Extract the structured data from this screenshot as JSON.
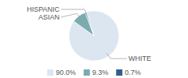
{
  "chart_data": {
    "type": "pie",
    "categories": [
      "WHITE",
      "ASIAN",
      "HISPANIC"
    ],
    "values": [
      90.0,
      9.3,
      0.7
    ],
    "value_labels": [
      "90.0%",
      "9.3%",
      "0.7%"
    ],
    "colors": [
      "#dce6f0",
      "#7aabb0",
      "#2e5f8a"
    ],
    "legend": "bottom"
  }
}
